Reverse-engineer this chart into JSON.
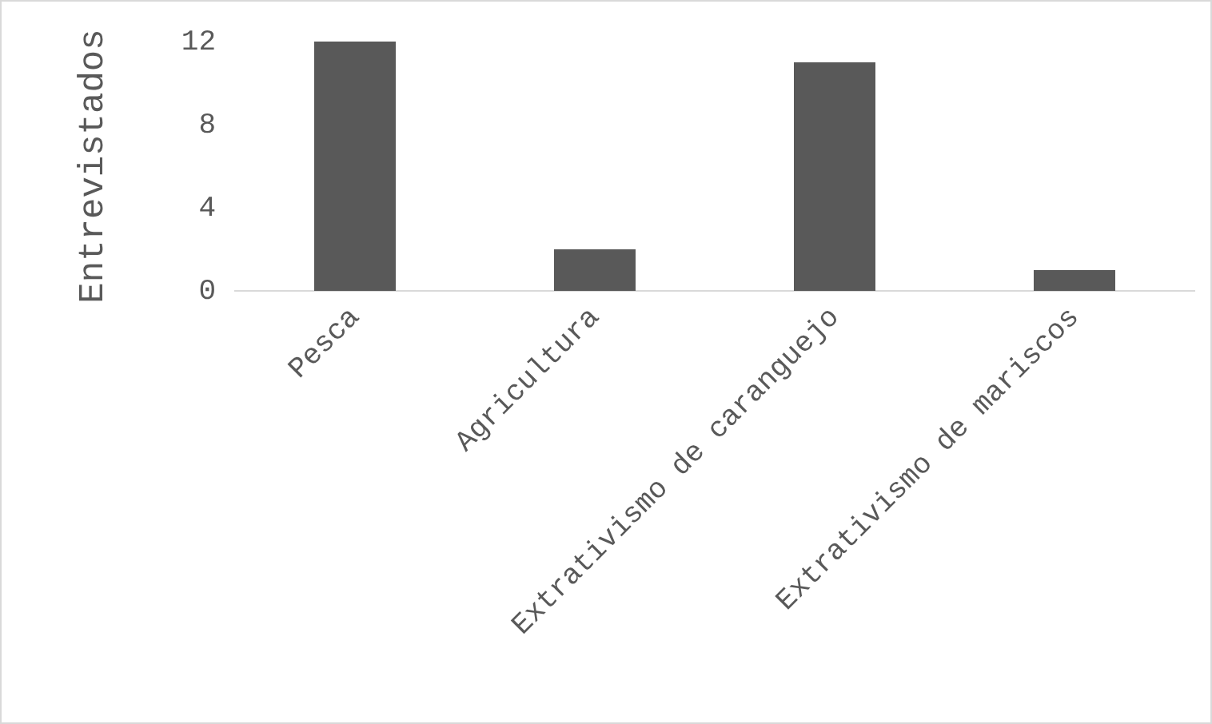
{
  "chart_data": {
    "type": "bar",
    "ylabel": "Entrevistados",
    "categories": [
      "Pesca",
      "Agricultura",
      "Extrativismo de caranguejo",
      "Extrativismo de mariscos"
    ],
    "values": [
      12,
      2,
      11,
      1
    ],
    "color": "#595959",
    "ylim": [
      0,
      12
    ],
    "yticks": [
      0,
      4,
      8,
      12
    ],
    "grid": false,
    "legend": false
  }
}
